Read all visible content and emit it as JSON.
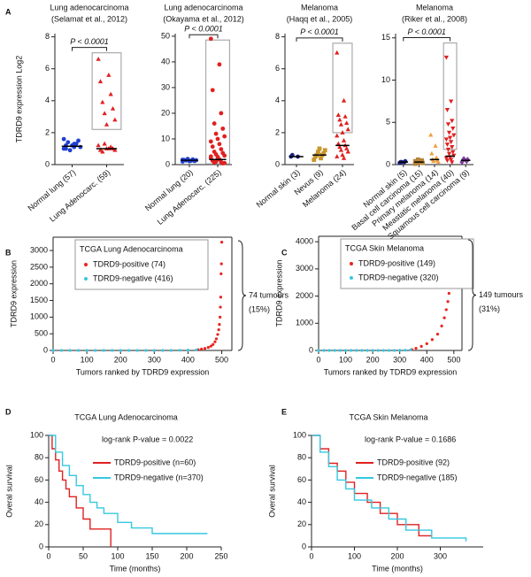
{
  "chart_data": [
    {
      "type": "dot",
      "panel": "A",
      "title": "Lung adenocarcinoma",
      "subtitle": "(Selamat et al., 2012)",
      "ylabel": "TDRD9 expression Log2",
      "categories": [
        "Normal lung (57)",
        "Lung Adenocarc. (59)"
      ],
      "colors": [
        "#1f3fd0",
        "#e02020"
      ],
      "markers": [
        "circle",
        "triangle"
      ],
      "values": [
        [
          1.0,
          1.1,
          1.2,
          1.3,
          1.4,
          1.5,
          0.9,
          1.1,
          1.2,
          1.6,
          1.3,
          1.0
        ],
        [
          6.6,
          5.6,
          5.2,
          4.4,
          3.9,
          3.5,
          3.2,
          2.8,
          2.5,
          1.2,
          1.0,
          0.9,
          1.1,
          0.8,
          1.0,
          1.3,
          0.9,
          1.0
        ]
      ],
      "medians": [
        1.15,
        1.0
      ],
      "ylim": [
        0,
        8.2
      ],
      "yticks": [
        0,
        2,
        4,
        6,
        8
      ],
      "annotation": "P < 0.0001",
      "highlight": {
        "category": 1,
        "range": [
          2.2,
          7.0
        ]
      }
    },
    {
      "type": "dot",
      "title": "Lung adenocarcinoma",
      "subtitle": "(Okayama et al., 2012)",
      "categories": [
        "Normal lung (20)",
        "Lung Adenocarc. (225)"
      ],
      "colors": [
        "#1f3fd0",
        "#e02020"
      ],
      "markers": [
        "circle",
        "circle"
      ],
      "values": [
        [
          1.2,
          1.5,
          1.8,
          2.0,
          1.6,
          1.4,
          2.2,
          1.7,
          1.3,
          1.9
        ],
        [
          49,
          39,
          29,
          20,
          16,
          14,
          12,
          11,
          10,
          9,
          8,
          7,
          6,
          5,
          4.5,
          4,
          3.5,
          3,
          2.5,
          2,
          1.5,
          1,
          0.8,
          0.5,
          1.2,
          0.6,
          2.2,
          3.2
        ]
      ],
      "medians": [
        1.7,
        2.0
      ],
      "ylim": [
        0,
        51
      ],
      "yticks": [
        0,
        10,
        20,
        30,
        40,
        50
      ],
      "annotation": "P < 0.0001",
      "highlight": {
        "category": 1,
        "range": [
          0.3,
          48.5
        ]
      }
    },
    {
      "type": "dot",
      "title": "Melanoma",
      "subtitle": "(Haqq et al., 2005)",
      "categories": [
        "Normal skin (3)",
        "Nevus (9)",
        "Melanoma (24)"
      ],
      "colors": [
        "#1a237e",
        "#c8962e",
        "#e02020"
      ],
      "markers": [
        "circle",
        "square",
        "triangle"
      ],
      "values": [
        [
          0.5,
          0.5,
          0.6
        ],
        [
          0.3,
          0.4,
          0.5,
          0.6,
          0.6,
          0.7,
          0.8,
          0.9,
          1.0
        ],
        [
          7.0,
          4.0,
          3.1,
          3.0,
          2.8,
          2.6,
          2.5,
          2.2,
          2.0,
          1.8,
          1.5,
          1.3,
          1.2,
          1.1,
          1.0,
          0.9,
          0.8,
          0.6,
          0.5,
          0.4
        ]
      ],
      "medians": [
        0.5,
        0.6,
        1.2
      ],
      "ylim": [
        0,
        8.2
      ],
      "yticks": [
        0,
        2,
        4,
        6,
        8
      ],
      "annotation": "P < 0.0001",
      "highlight": {
        "category": 2,
        "range": [
          2.0,
          7.6
        ]
      }
    },
    {
      "type": "dot",
      "title": "Melanoma",
      "subtitle": "(Riker et al., 2008)",
      "categories": [
        "Normal skin (5)",
        "Basal cell carcinoma (15)",
        "Primary melanoma (14)",
        "Meastatic melanoma (40)",
        "Squamous cell carcinoma (9)"
      ],
      "colors": [
        "#1a237e",
        "#b5853a",
        "#f0a040",
        "#e02020",
        "#7b3f9e"
      ],
      "markers": [
        "circle",
        "square",
        "triangle",
        "triangle-down",
        "diamond"
      ],
      "values": [
        [
          0.2,
          0.3,
          0.3,
          0.4,
          0.3
        ],
        [
          0.1,
          0.2,
          0.3,
          0.3,
          0.4,
          0.5,
          0.6,
          0.2,
          0.3,
          0.4
        ],
        [
          3.5,
          2.2,
          1.3,
          0.8,
          0.6,
          0.5,
          0.4,
          0.3
        ],
        [
          12.7,
          7.5,
          6.5,
          5.2,
          4.8,
          4.3,
          3.8,
          3.5,
          3.2,
          3.0,
          2.7,
          2.4,
          2.1,
          1.8,
          1.5,
          1.3,
          1.1,
          0.9,
          0.8,
          0.6,
          0.5,
          0.3
        ],
        [
          0.3,
          0.4,
          0.5,
          0.6,
          0.7
        ]
      ],
      "medians": [
        0.3,
        0.3,
        0.6,
        1.0,
        0.5
      ],
      "ylim": [
        0,
        15.5
      ],
      "yticks": [
        0,
        5,
        10,
        15
      ],
      "annotation": "P < 0.0001",
      "highlight": {
        "category": 3,
        "range": [
          1.8,
          14.4
        ]
      }
    },
    {
      "type": "ranked",
      "panel": "B",
      "title": "TCGA Lung Adenocarcinoma",
      "xlabel": "Tumors ranked by TDRD9 expression",
      "ylabel": "TDRD9 expression",
      "xlim": [
        0,
        530
      ],
      "xticks": [
        0,
        100,
        200,
        300,
        400,
        500
      ],
      "ylim": [
        0,
        3400
      ],
      "yticks": [
        0,
        500,
        1000,
        1500,
        2000,
        2500,
        3000
      ],
      "series": [
        {
          "name": "TDRD9-positive (74)",
          "color": "#e8231f",
          "x": [
            430,
            440,
            450,
            460,
            468,
            474,
            480,
            484,
            488,
            491,
            493,
            495,
            496,
            497,
            498,
            499,
            500
          ],
          "values": [
            20,
            40,
            60,
            90,
            130,
            180,
            260,
            350,
            480,
            620,
            780,
            1000,
            1300,
            1600,
            2300,
            2600,
            3250
          ]
        },
        {
          "name": "TDRD9-negative (416)",
          "color": "#35c8e0",
          "x": [
            0,
            25,
            50,
            75,
            100,
            125,
            150,
            175,
            200,
            225,
            250,
            275,
            300,
            325,
            350,
            375,
            400,
            425
          ],
          "values": [
            0,
            0,
            0,
            0,
            0,
            0,
            0,
            0,
            0,
            0,
            0,
            0,
            0,
            0,
            0,
            5,
            10,
            15
          ]
        }
      ],
      "annotation": [
        "74 tumours",
        "(15%)"
      ]
    },
    {
      "type": "ranked",
      "panel": "C",
      "title": "TCGA Skin Melanoma",
      "xlabel": "Tumors ranked by TDRD9 expression",
      "ylabel": "TDRD9 expression",
      "xlim": [
        0,
        530
      ],
      "xticks": [
        0,
        100,
        200,
        300,
        400,
        500
      ],
      "ylim": [
        0,
        4200
      ],
      "yticks": [
        0,
        1000,
        2000,
        3000,
        4000
      ],
      "series": [
        {
          "name": "TDRD9-positive (149)",
          "color": "#e8231f",
          "x": [
            345,
            360,
            380,
            400,
            420,
            440,
            455,
            465,
            472,
            478,
            482,
            485,
            487,
            489,
            490
          ],
          "values": [
            30,
            80,
            150,
            250,
            400,
            600,
            900,
            1200,
            1500,
            1800,
            2100,
            2400,
            2900,
            3500,
            3900
          ]
        },
        {
          "name": "TDRD9-negative (320)",
          "color": "#35c8e0",
          "x": [
            0,
            20,
            40,
            60,
            80,
            100,
            120,
            140,
            160,
            180,
            200,
            220,
            240,
            260,
            280,
            300,
            320,
            340
          ],
          "values": [
            0,
            0,
            0,
            0,
            0,
            0,
            0,
            0,
            0,
            0,
            0,
            0,
            0,
            0,
            0,
            5,
            10,
            20
          ]
        }
      ],
      "annotation": [
        "149 tumours",
        "(31%)"
      ]
    },
    {
      "type": "survival",
      "panel": "D",
      "title": "TCGA Lung Adenocarcinoma",
      "annotation": "log-rank P-value = 0.0022",
      "xlabel": "Time (months)",
      "ylabel": "Overal survival",
      "xlim": [
        0,
        250
      ],
      "xticks": [
        0,
        50,
        100,
        150,
        200,
        250
      ],
      "ylim": [
        0,
        100
      ],
      "yticks": [
        0,
        20,
        40,
        60,
        80,
        100
      ],
      "step": true,
      "series": [
        {
          "name": "TDRD9-positive (n=60)",
          "color": "#e02020",
          "x": [
            0,
            5,
            10,
            15,
            20,
            25,
            30,
            40,
            50,
            60,
            90
          ],
          "values": [
            100,
            88,
            78,
            68,
            60,
            52,
            45,
            35,
            25,
            16,
            0
          ]
        },
        {
          "name": "TDRD9-negative (n=370)",
          "color": "#35c8e0",
          "x": [
            0,
            10,
            20,
            30,
            40,
            50,
            60,
            70,
            80,
            100,
            120,
            150,
            230
          ],
          "values": [
            100,
            85,
            73,
            64,
            55,
            47,
            40,
            35,
            30,
            22,
            17,
            12,
            12
          ]
        }
      ]
    },
    {
      "type": "survival",
      "panel": "E",
      "title": "TCGA Skin Melanoma",
      "annotation": "log-rank P-value = 0.1686",
      "xlabel": "Time (months)",
      "ylabel": "Overal survival",
      "xlim": [
        0,
        400
      ],
      "xticks": [
        0,
        100,
        200,
        300
      ],
      "ylim": [
        0,
        100
      ],
      "yticks": [
        0,
        20,
        40,
        60,
        80,
        100
      ],
      "step": true,
      "series": [
        {
          "name": "TDRD9-positive (92)",
          "color": "#e02020",
          "x": [
            0,
            20,
            40,
            60,
            80,
            100,
            130,
            160,
            200,
            250,
            280
          ],
          "values": [
            100,
            88,
            75,
            68,
            58,
            48,
            40,
            30,
            20,
            10,
            10
          ]
        },
        {
          "name": "TDRD9-negative (185)",
          "color": "#35c8e0",
          "x": [
            0,
            20,
            40,
            60,
            80,
            100,
            140,
            180,
            220,
            280,
            360
          ],
          "values": [
            100,
            85,
            72,
            60,
            52,
            42,
            35,
            25,
            15,
            8,
            5
          ]
        }
      ]
    }
  ]
}
